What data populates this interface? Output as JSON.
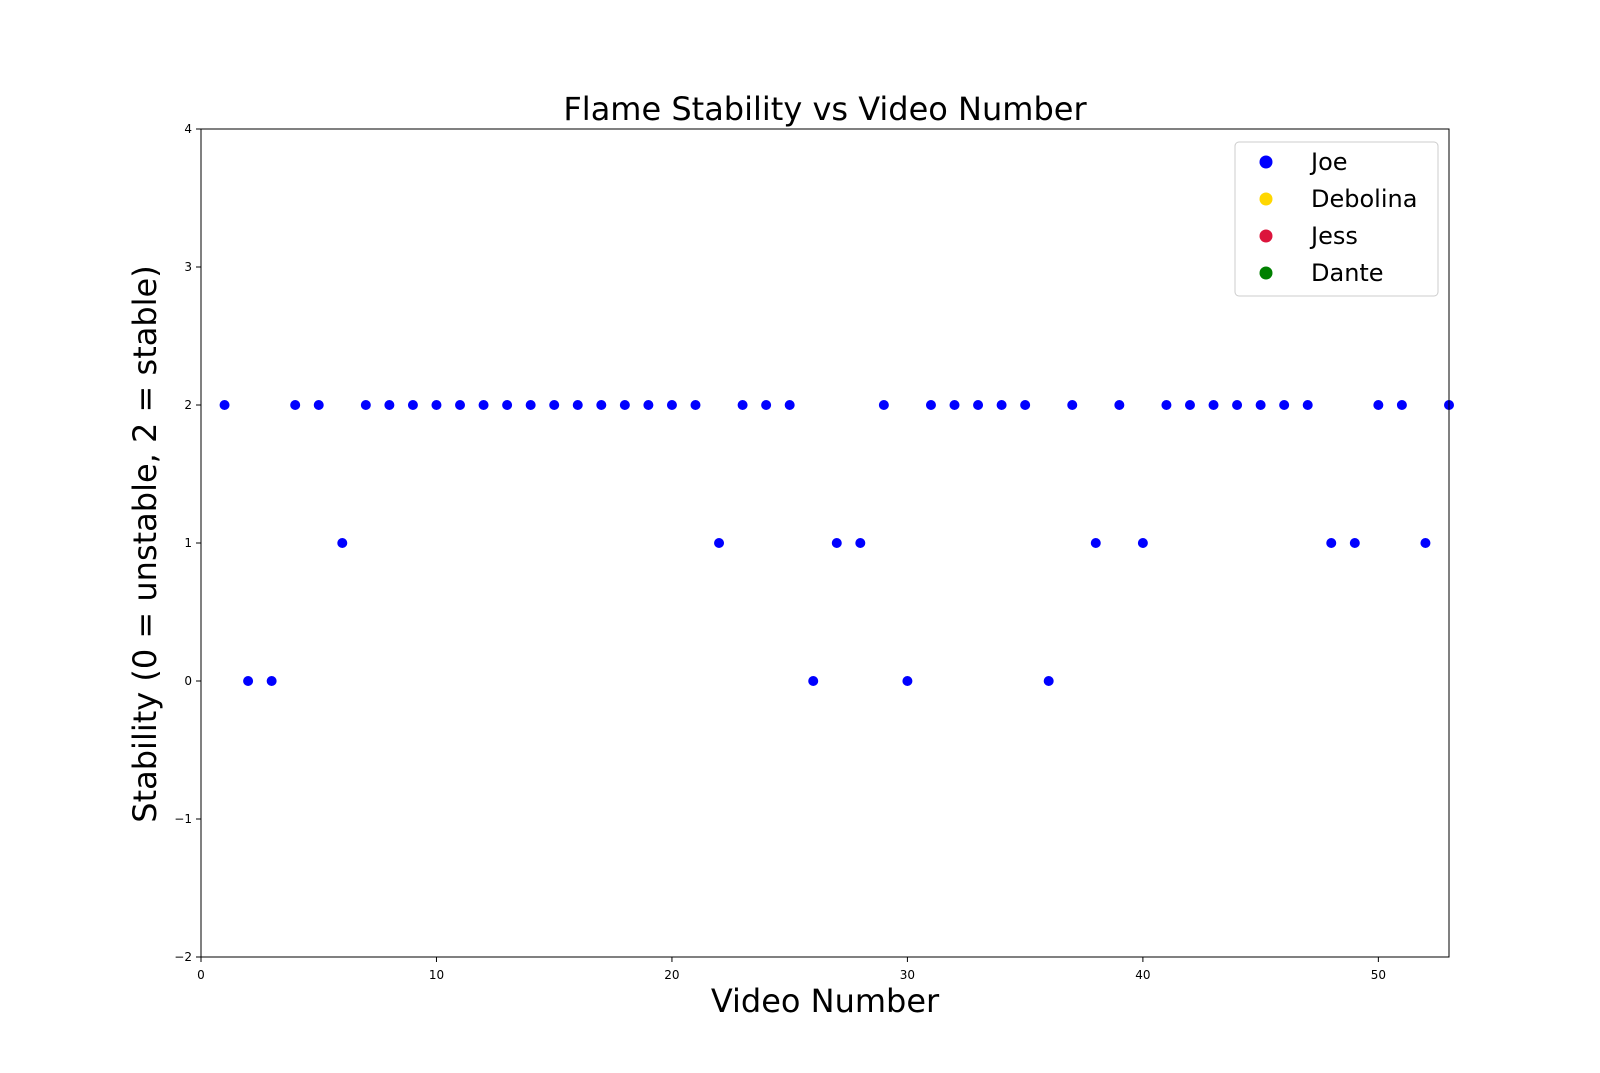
{
  "chart_data": {
    "type": "scatter",
    "title": "Flame Stability vs Video Number",
    "xlabel": "Video Number",
    "ylabel": "Stability (0 = unstable, 2 = stable)",
    "xlim": [
      0,
      53
    ],
    "ylim": [
      -2,
      4
    ],
    "x_ticks": [
      0,
      10,
      20,
      30,
      40,
      50
    ],
    "y_ticks": [
      -2,
      -1,
      0,
      1,
      2,
      3,
      4
    ],
    "x_tick_labels": [
      "0",
      "10",
      "20",
      "30",
      "40",
      "50"
    ],
    "y_tick_labels": [
      "−2",
      "−1",
      "0",
      "1",
      "2",
      "3",
      "4"
    ],
    "grid": false,
    "legend_position": "top-right",
    "series": [
      {
        "name": "Joe",
        "color": "#0000ff",
        "x": [
          1,
          2,
          3,
          4,
          5,
          6,
          7,
          8,
          9,
          10,
          11,
          12,
          13,
          14,
          15,
          16,
          17,
          18,
          19,
          20,
          21,
          22,
          23,
          24,
          25,
          26,
          27,
          28,
          29,
          30,
          31,
          32,
          33,
          34,
          35,
          36,
          37,
          38,
          39,
          40,
          41,
          42,
          43,
          44,
          45,
          46,
          47,
          48,
          49,
          50,
          51,
          52,
          53
        ],
        "y": [
          2,
          0,
          0,
          2,
          2,
          1,
          2,
          2,
          2,
          2,
          2,
          2,
          2,
          2,
          2,
          2,
          2,
          2,
          2,
          2,
          2,
          1,
          2,
          2,
          2,
          0,
          1,
          1,
          2,
          0,
          2,
          2,
          2,
          2,
          2,
          0,
          2,
          1,
          2,
          1,
          2,
          2,
          2,
          2,
          2,
          2,
          2,
          1,
          1,
          2,
          2,
          1,
          2
        ]
      },
      {
        "name": "Debolina",
        "color": "#ffd700",
        "x": [],
        "y": []
      },
      {
        "name": "Jess",
        "color": "#dc143c",
        "x": [],
        "y": []
      },
      {
        "name": "Dante",
        "color": "#008000",
        "x": [],
        "y": []
      }
    ]
  }
}
